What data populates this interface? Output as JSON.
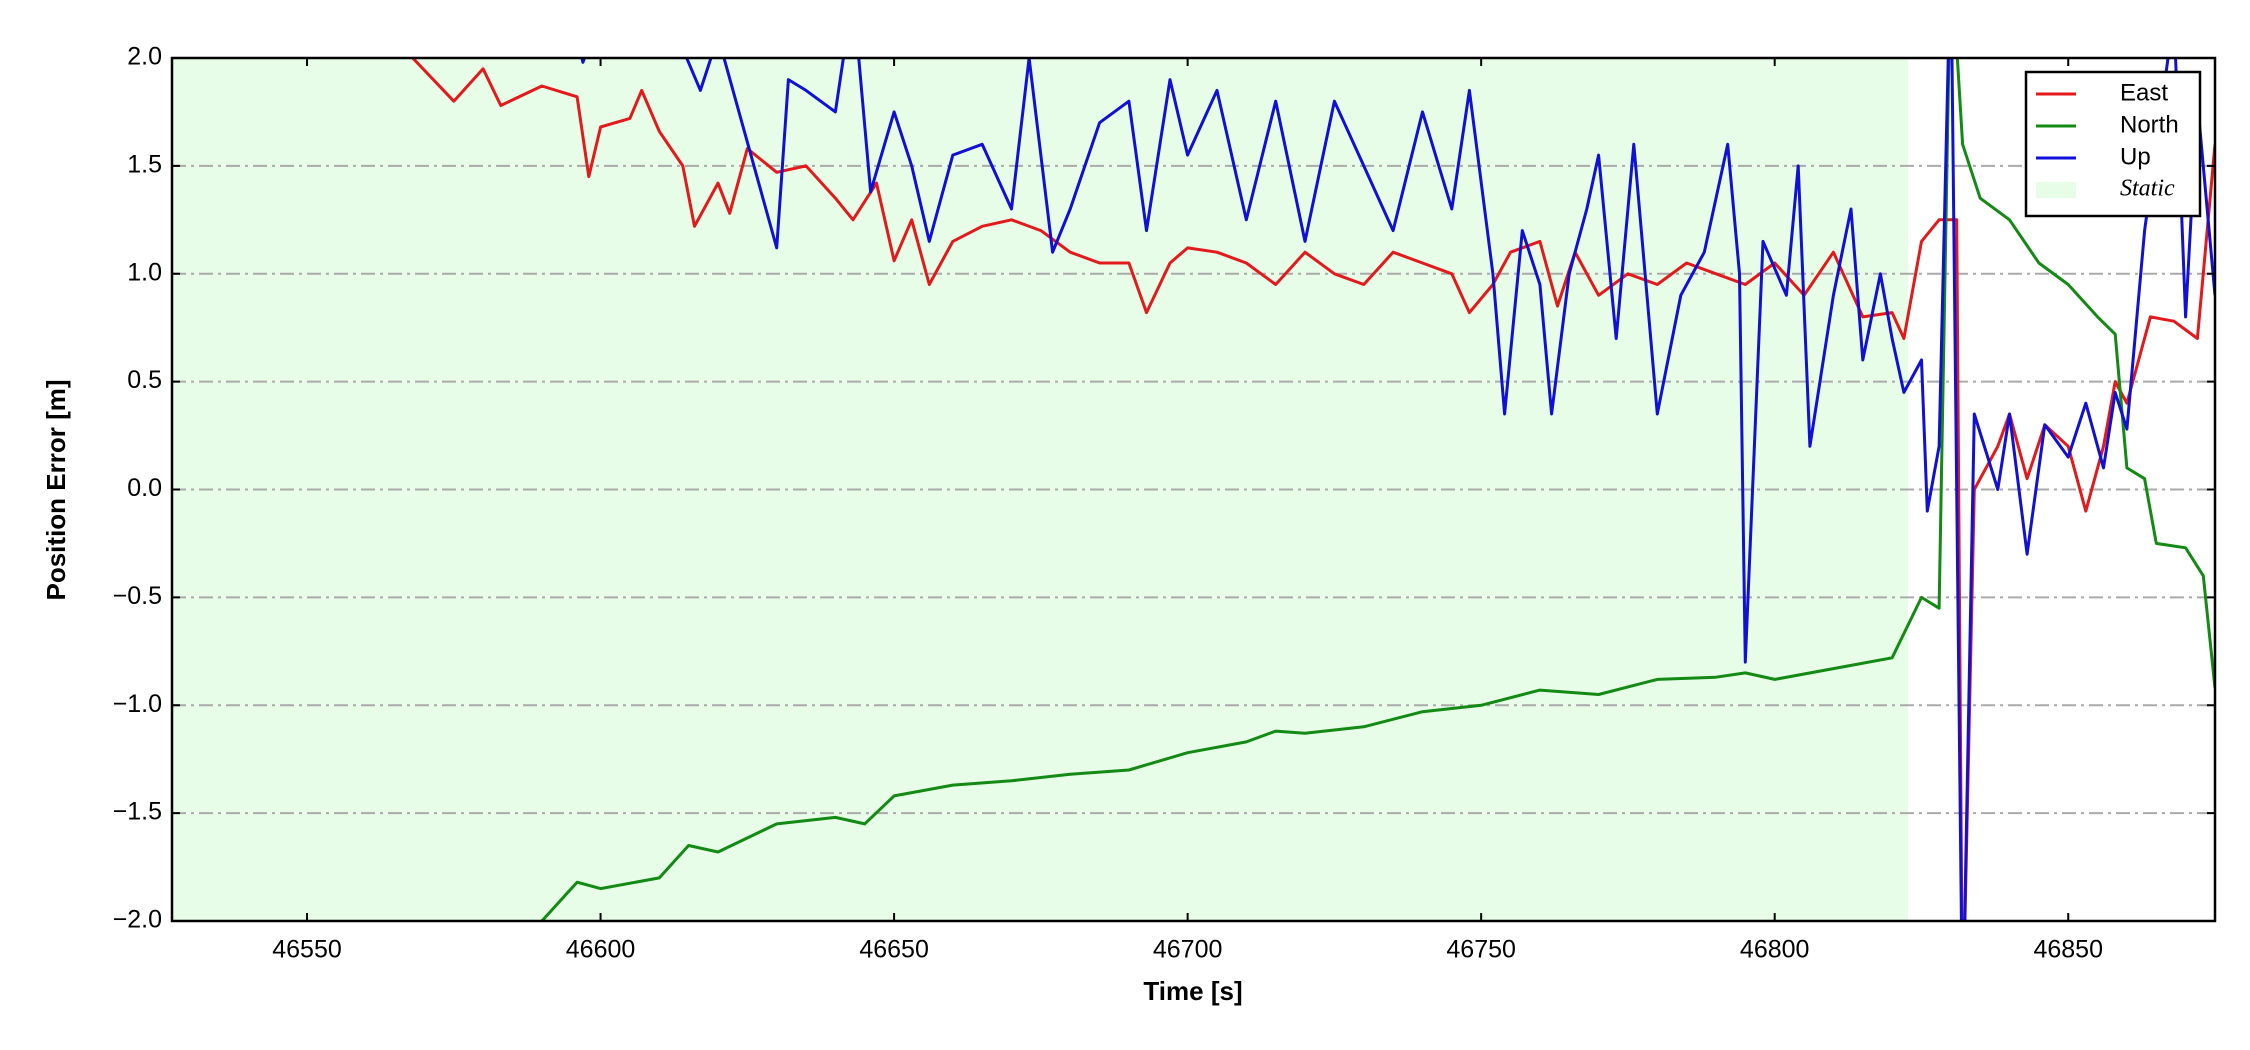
{
  "chart_data": {
    "type": "line",
    "xlabel": "Time [s]",
    "ylabel": "Position Error [m]",
    "xlim": [
      46527,
      46875
    ],
    "ylim": [
      -2,
      2
    ],
    "xticks": [
      46550,
      46600,
      46650,
      46700,
      46750,
      46800,
      46850
    ],
    "yticks": [
      {
        "value": -2,
        "label": "−2.0"
      },
      {
        "value": -1.5,
        "label": "−1.5"
      },
      {
        "value": -1,
        "label": "−1.0"
      },
      {
        "value": -0.5,
        "label": "−0.5"
      },
      {
        "value": 0,
        "label": "0.0"
      },
      {
        "value": 0.5,
        "label": "0.5"
      },
      {
        "value": 1,
        "label": "1.0"
      },
      {
        "value": 1.5,
        "label": "1.5"
      },
      {
        "value": 2,
        "label": "2.0"
      }
    ],
    "grid": true,
    "legend": "upper right",
    "shaded_span": {
      "name": "Static",
      "x": [
        46527,
        46822.7
      ],
      "color": "#e8fde8"
    },
    "series": [
      {
        "name": "East",
        "color": "#e31a1c",
        "x": [
          46527,
          46566,
          46568,
          46575,
          46580,
          46583,
          46590,
          46596,
          46598,
          46600,
          46605,
          46607,
          46610,
          46614,
          46616,
          46620,
          46622,
          46625,
          46630,
          46635,
          46640,
          46643,
          46647,
          46650,
          46653,
          46656,
          46660,
          46665,
          46670,
          46675,
          46680,
          46685,
          46690,
          46693,
          46697,
          46700,
          46705,
          46710,
          46715,
          46720,
          46725,
          46730,
          46735,
          46740,
          46745,
          46748,
          46752,
          46755,
          46760,
          46763,
          46766,
          46770,
          46775,
          46780,
          46785,
          46790,
          46795,
          46800,
          46805,
          46810,
          46815,
          46820,
          46822,
          46825,
          46828,
          46831,
          46832,
          46834,
          46838,
          46840,
          46843,
          46846,
          46850,
          46853,
          46856,
          46858,
          46860,
          46864,
          46868,
          46872,
          46875
        ],
        "values": [
          2.2,
          2.1,
          2.0,
          1.8,
          1.95,
          1.78,
          1.87,
          1.82,
          1.45,
          1.68,
          1.72,
          1.85,
          1.66,
          1.5,
          1.22,
          1.42,
          1.28,
          1.58,
          1.47,
          1.5,
          1.35,
          1.25,
          1.42,
          1.06,
          1.25,
          0.95,
          1.15,
          1.22,
          1.25,
          1.2,
          1.1,
          1.05,
          1.05,
          0.82,
          1.05,
          1.12,
          1.1,
          1.05,
          0.95,
          1.1,
          1.0,
          0.95,
          1.1,
          1.05,
          1.0,
          0.82,
          0.95,
          1.1,
          1.15,
          0.85,
          1.1,
          0.9,
          1.0,
          0.95,
          1.05,
          1.0,
          0.95,
          1.05,
          0.9,
          1.1,
          0.8,
          0.82,
          0.7,
          1.15,
          1.25,
          1.25,
          -2.5,
          0.0,
          0.2,
          0.35,
          0.05,
          0.3,
          0.2,
          -0.1,
          0.2,
          0.5,
          0.4,
          0.8,
          0.78,
          0.7,
          1.6
        ]
      },
      {
        "name": "North",
        "color": "#138a13",
        "x": [
          46560,
          46590,
          46596,
          46600,
          46610,
          46615,
          46620,
          46630,
          46640,
          46645,
          46650,
          46660,
          46670,
          46680,
          46690,
          46700,
          46710,
          46715,
          46720,
          46730,
          46740,
          46750,
          46760,
          46770,
          46780,
          46790,
          46795,
          46800,
          46810,
          46820,
          46825,
          46828,
          46830,
          46832,
          46835,
          46840,
          46845,
          46850,
          46855,
          46858,
          46860,
          46863,
          46865,
          46870,
          46873,
          46875
        ],
        "values": [
          -2.3,
          -2.0,
          -1.82,
          -1.85,
          -1.8,
          -1.65,
          -1.68,
          -1.55,
          -1.52,
          -1.55,
          -1.42,
          -1.37,
          -1.35,
          -1.32,
          -1.3,
          -1.22,
          -1.17,
          -1.12,
          -1.13,
          -1.1,
          -1.03,
          -1.0,
          -0.93,
          -0.95,
          -0.88,
          -0.87,
          -0.85,
          -0.88,
          -0.83,
          -0.78,
          -0.5,
          -0.55,
          2.5,
          1.6,
          1.35,
          1.25,
          1.05,
          0.95,
          0.8,
          0.72,
          0.1,
          0.05,
          -0.25,
          -0.27,
          -0.4,
          -0.92
        ]
      },
      {
        "name": "Up",
        "color": "#1010d8",
        "x": [
          46596,
          46597,
          46600,
          46610,
          46617,
          46620,
          46630,
          46632,
          46635,
          46640,
          46643,
          46646,
          46650,
          46653,
          46656,
          46660,
          46665,
          46670,
          46673,
          46677,
          46680,
          46685,
          46690,
          46693,
          46697,
          46700,
          46705,
          46710,
          46715,
          46720,
          46725,
          46730,
          46735,
          46740,
          46745,
          46748,
          46752,
          46754,
          46757,
          46760,
          46762,
          46765,
          46768,
          46770,
          46773,
          46776,
          46780,
          46784,
          46788,
          46792,
          46794,
          46795,
          46798,
          46802,
          46804,
          46806,
          46810,
          46813,
          46815,
          46818,
          46820,
          46822,
          46825,
          46826,
          46828,
          46830,
          46832,
          46834,
          46838,
          46840,
          46843,
          46846,
          46850,
          46853,
          46856,
          46858,
          46860,
          46863,
          46868,
          46870,
          46872,
          46875
        ],
        "values": [
          2.1,
          1.98,
          2.2,
          2.3,
          1.85,
          2.1,
          1.12,
          1.9,
          1.85,
          1.75,
          2.3,
          1.38,
          1.75,
          1.5,
          1.15,
          1.55,
          1.6,
          1.3,
          2.0,
          1.1,
          1.3,
          1.7,
          1.8,
          1.2,
          1.9,
          1.55,
          1.85,
          1.25,
          1.8,
          1.15,
          1.8,
          1.5,
          1.2,
          1.75,
          1.3,
          1.85,
          1.0,
          0.35,
          1.2,
          0.95,
          0.35,
          1.0,
          1.3,
          1.55,
          0.7,
          1.6,
          0.35,
          0.9,
          1.1,
          1.6,
          1.0,
          -0.8,
          1.15,
          0.9,
          1.5,
          0.2,
          0.9,
          1.3,
          0.6,
          1.0,
          0.7,
          0.45,
          0.6,
          -0.1,
          0.2,
          2.5,
          -2.5,
          0.35,
          0.0,
          0.35,
          -0.3,
          0.3,
          0.15,
          0.4,
          0.1,
          0.45,
          0.28,
          1.2,
          2.2,
          0.8,
          1.8,
          0.9
        ]
      }
    ]
  }
}
